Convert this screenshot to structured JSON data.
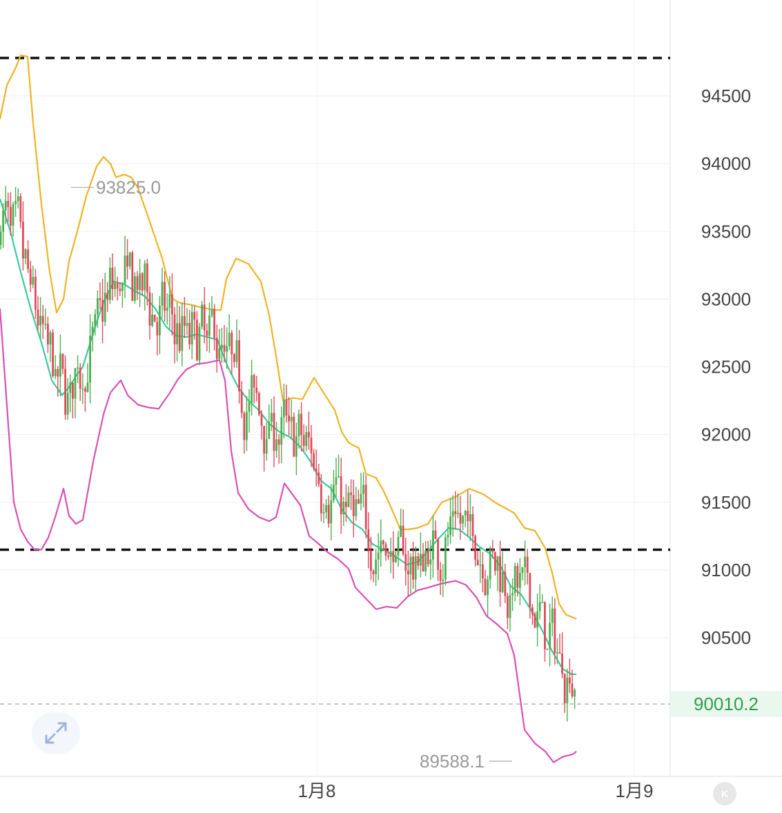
{
  "chart_data": {
    "type": "candlestick",
    "y_axis": {
      "ticks": [
        90500,
        91000,
        91500,
        92000,
        92500,
        93000,
        93500,
        94000,
        94500
      ],
      "ylim": [
        89400,
        95100
      ],
      "position": "right"
    },
    "x_axis": {
      "tick_labels": [
        "1月8",
        "1月9"
      ]
    },
    "current_price": "90010.2",
    "high_annotation": "93825.0",
    "low_annotation": "89588.1",
    "dashed_levels": [
      94780,
      91150
    ],
    "colors": {
      "up": "#4caf50",
      "down": "#e04a5a",
      "upper_band": "#f0b322",
      "middle_band": "#3cc9a0",
      "lower_band": "#d94fb5",
      "current_price": "#2e9e4a"
    },
    "bands": {
      "upper": [
        [
          0,
          94330
        ],
        [
          10,
          94580
        ],
        [
          22,
          94700
        ],
        [
          30,
          94800
        ],
        [
          40,
          94790
        ],
        [
          48,
          94300
        ],
        [
          60,
          93700
        ],
        [
          72,
          93200
        ],
        [
          82,
          92900
        ],
        [
          92,
          93000
        ],
        [
          100,
          93280
        ],
        [
          112,
          93500
        ],
        [
          125,
          93760
        ],
        [
          140,
          93980
        ],
        [
          150,
          94050
        ],
        [
          160,
          94000
        ],
        [
          168,
          93900
        ],
        [
          180,
          93920
        ],
        [
          190,
          93900
        ],
        [
          200,
          93820
        ],
        [
          215,
          93600
        ],
        [
          235,
          93300
        ],
        [
          250,
          93000
        ],
        [
          262,
          92970
        ],
        [
          275,
          92960
        ],
        [
          290,
          92940
        ],
        [
          310,
          92920
        ],
        [
          320,
          92920
        ],
        [
          328,
          93150
        ],
        [
          342,
          93300
        ],
        [
          360,
          93260
        ],
        [
          378,
          93130
        ],
        [
          390,
          92880
        ],
        [
          400,
          92580
        ],
        [
          410,
          92250
        ],
        [
          425,
          92270
        ],
        [
          438,
          92260
        ],
        [
          455,
          92420
        ],
        [
          470,
          92300
        ],
        [
          485,
          92180
        ],
        [
          495,
          92020
        ],
        [
          505,
          91940
        ],
        [
          520,
          91900
        ],
        [
          530,
          91710
        ],
        [
          545,
          91680
        ],
        [
          555,
          91590
        ],
        [
          565,
          91480
        ],
        [
          580,
          91300
        ],
        [
          592,
          91300
        ],
        [
          605,
          91310
        ],
        [
          620,
          91340
        ],
        [
          640,
          91500
        ],
        [
          660,
          91540
        ],
        [
          680,
          91600
        ],
        [
          700,
          91560
        ],
        [
          720,
          91490
        ],
        [
          735,
          91450
        ],
        [
          745,
          91420
        ],
        [
          760,
          91310
        ],
        [
          775,
          91290
        ],
        [
          790,
          91160
        ],
        [
          800,
          90980
        ],
        [
          810,
          90750
        ],
        [
          820,
          90670
        ],
        [
          835,
          90640
        ]
      ],
      "middle": [
        [
          0,
          93740
        ],
        [
          15,
          93500
        ],
        [
          30,
          93200
        ],
        [
          45,
          92920
        ],
        [
          60,
          92680
        ],
        [
          75,
          92400
        ],
        [
          90,
          92290
        ],
        [
          100,
          92350
        ],
        [
          110,
          92430
        ],
        [
          120,
          92500
        ],
        [
          135,
          92750
        ],
        [
          150,
          92980
        ],
        [
          165,
          93130
        ],
        [
          180,
          93110
        ],
        [
          195,
          93060
        ],
        [
          210,
          93020
        ],
        [
          225,
          92930
        ],
        [
          240,
          92800
        ],
        [
          255,
          92730
        ],
        [
          270,
          92720
        ],
        [
          285,
          92740
        ],
        [
          300,
          92720
        ],
        [
          315,
          92700
        ],
        [
          330,
          92500
        ],
        [
          345,
          92350
        ],
        [
          360,
          92250
        ],
        [
          375,
          92180
        ],
        [
          390,
          92080
        ],
        [
          405,
          92020
        ],
        [
          420,
          91980
        ],
        [
          435,
          91910
        ],
        [
          450,
          91800
        ],
        [
          465,
          91660
        ],
        [
          480,
          91600
        ],
        [
          495,
          91450
        ],
        [
          510,
          91350
        ],
        [
          525,
          91300
        ],
        [
          540,
          91190
        ],
        [
          555,
          91150
        ],
        [
          570,
          91110
        ],
        [
          590,
          91040
        ],
        [
          605,
          91060
        ],
        [
          620,
          91140
        ],
        [
          635,
          91230
        ],
        [
          650,
          91310
        ],
        [
          665,
          91300
        ],
        [
          680,
          91240
        ],
        [
          695,
          91170
        ],
        [
          710,
          91120
        ],
        [
          725,
          91030
        ],
        [
          740,
          90880
        ],
        [
          755,
          90820
        ],
        [
          770,
          90700
        ],
        [
          785,
          90560
        ],
        [
          800,
          90400
        ],
        [
          815,
          90270
        ],
        [
          828,
          90230
        ],
        [
          835,
          90230
        ]
      ],
      "lower": [
        [
          0,
          92930
        ],
        [
          20,
          91500
        ],
        [
          30,
          91300
        ],
        [
          40,
          91210
        ],
        [
          50,
          91150
        ],
        [
          60,
          91150
        ],
        [
          70,
          91240
        ],
        [
          80,
          91390
        ],
        [
          92,
          91600
        ],
        [
          100,
          91400
        ],
        [
          110,
          91340
        ],
        [
          120,
          91370
        ],
        [
          135,
          91800
        ],
        [
          150,
          92150
        ],
        [
          160,
          92310
        ],
        [
          175,
          92400
        ],
        [
          185,
          92290
        ],
        [
          200,
          92220
        ],
        [
          215,
          92200
        ],
        [
          230,
          92190
        ],
        [
          245,
          92300
        ],
        [
          258,
          92410
        ],
        [
          270,
          92480
        ],
        [
          285,
          92520
        ],
        [
          300,
          92530
        ],
        [
          318,
          92550
        ],
        [
          326,
          92400
        ],
        [
          335,
          91880
        ],
        [
          345,
          91570
        ],
        [
          360,
          91450
        ],
        [
          375,
          91390
        ],
        [
          390,
          91360
        ],
        [
          400,
          91390
        ],
        [
          412,
          91640
        ],
        [
          422,
          91570
        ],
        [
          435,
          91480
        ],
        [
          448,
          91250
        ],
        [
          460,
          91200
        ],
        [
          475,
          91130
        ],
        [
          490,
          91080
        ],
        [
          505,
          91010
        ],
        [
          515,
          90870
        ],
        [
          530,
          90790
        ],
        [
          545,
          90710
        ],
        [
          560,
          90730
        ],
        [
          575,
          90720
        ],
        [
          590,
          90800
        ],
        [
          605,
          90850
        ],
        [
          620,
          90870
        ],
        [
          640,
          90900
        ],
        [
          660,
          90920
        ],
        [
          675,
          90890
        ],
        [
          690,
          90800
        ],
        [
          705,
          90660
        ],
        [
          720,
          90600
        ],
        [
          735,
          90530
        ],
        [
          745,
          90370
        ],
        [
          760,
          89820
        ],
        [
          775,
          89720
        ],
        [
          790,
          89660
        ],
        [
          802,
          89580
        ],
        [
          815,
          89620
        ],
        [
          830,
          89640
        ],
        [
          835,
          89660
        ]
      ]
    }
  },
  "controls": {
    "expand_icon": "expand-arrows-icon",
    "k_button": "K"
  }
}
